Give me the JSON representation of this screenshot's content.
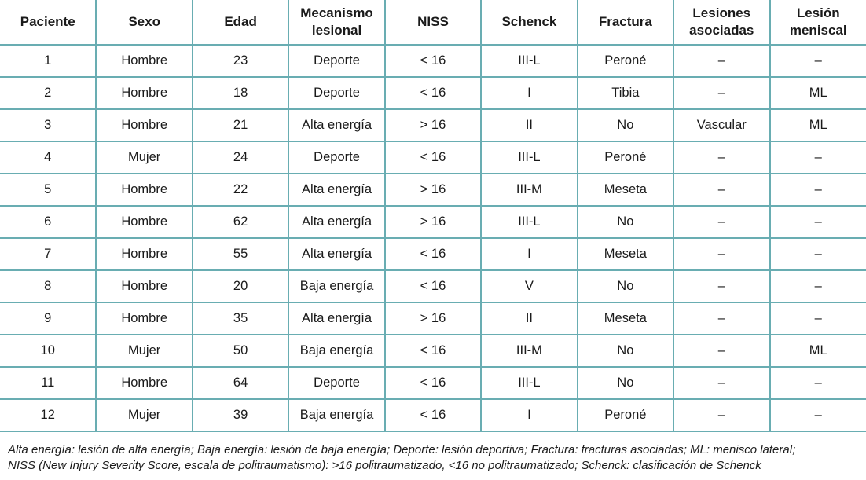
{
  "colors": {
    "border_teal": "#69adb2",
    "text": "#1a1a1a"
  },
  "table": {
    "columns": [
      {
        "key": "paciente",
        "label": "Paciente"
      },
      {
        "key": "sexo",
        "label": "Sexo"
      },
      {
        "key": "edad",
        "label": "Edad"
      },
      {
        "key": "mecanismo-lesional",
        "label": "Mecanismo lesional"
      },
      {
        "key": "niss",
        "label": "NISS"
      },
      {
        "key": "schenck",
        "label": "Schenck"
      },
      {
        "key": "fractura",
        "label": "Fractura"
      },
      {
        "key": "lesiones-asociadas",
        "label": "Lesiones asociadas"
      },
      {
        "key": "lesion-meniscal",
        "label": "Lesión meniscal"
      }
    ],
    "rows": [
      [
        "1",
        "Hombre",
        "23",
        "Deporte",
        "< 16",
        "III-L",
        "Peroné",
        "–",
        "–"
      ],
      [
        "2",
        "Hombre",
        "18",
        "Deporte",
        "< 16",
        "I",
        "Tibia",
        "–",
        "ML"
      ],
      [
        "3",
        "Hombre",
        "21",
        "Alta energía",
        "> 16",
        "II",
        "No",
        "Vascular",
        "ML"
      ],
      [
        "4",
        "Mujer",
        "24",
        "Deporte",
        "< 16",
        "III-L",
        "Peroné",
        "–",
        "–"
      ],
      [
        "5",
        "Hombre",
        "22",
        "Alta energía",
        "> 16",
        "III-M",
        "Meseta",
        "–",
        "–"
      ],
      [
        "6",
        "Hombre",
        "62",
        "Alta energía",
        "> 16",
        "III-L",
        "No",
        "–",
        "–"
      ],
      [
        "7",
        "Hombre",
        "55",
        "Alta energía",
        "< 16",
        "I",
        "Meseta",
        "–",
        "–"
      ],
      [
        "8",
        "Hombre",
        "20",
        "Baja energía",
        "< 16",
        "V",
        "No",
        "–",
        "–"
      ],
      [
        "9",
        "Hombre",
        "35",
        "Alta energía",
        "> 16",
        "II",
        "Meseta",
        "–",
        "–"
      ],
      [
        "10",
        "Mujer",
        "50",
        "Baja energía",
        "< 16",
        "III-M",
        "No",
        "–",
        "ML"
      ],
      [
        "11",
        "Hombre",
        "64",
        "Deporte",
        "< 16",
        "III-L",
        "No",
        "–",
        "–"
      ],
      [
        "12",
        "Mujer",
        "39",
        "Baja energía",
        "< 16",
        "I",
        "Peroné",
        "–",
        "–"
      ]
    ]
  },
  "footnote": {
    "lines": [
      "Alta energía: lesión de alta energía; Baja energía: lesión de baja energía; Deporte: lesión deportiva; Fractura: fracturas asociadas; ML: menisco lateral;",
      "NISS (New Injury Severity Score, escala de politraumatismo): >16 politraumatizado, <16 no politraumatizado; Schenck: clasificación de Schenck"
    ]
  }
}
